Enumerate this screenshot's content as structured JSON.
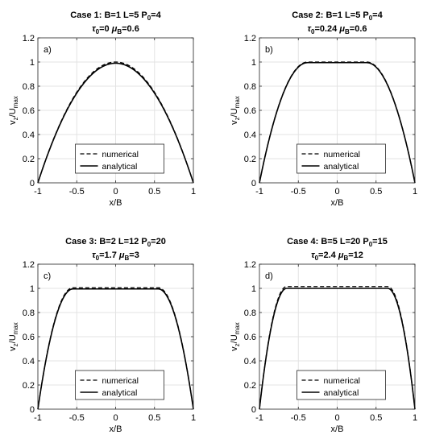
{
  "chart_data": [
    {
      "type": "line",
      "title": [
        "Case 1: B=1  L=5  P0=4",
        "τ0=0  μB=0.6"
      ],
      "title_line1": {
        "case": "Case 1:",
        "B": "B=1",
        "L": "L=5",
        "P": "P",
        "P_sub": "0",
        "P_val": "=4"
      },
      "title_line2": {
        "tau": "τ",
        "tau_sub": "0",
        "tau_val": "=0",
        "mu": "μ",
        "mu_sub": "B",
        "mu_val": "=0.6"
      },
      "panel_label": "a)",
      "xlabel": "x/B",
      "ylabel": {
        "main": "v",
        "sub1": "z",
        "sep": "/U",
        "sub2": "max"
      },
      "xlim": [
        -1,
        1
      ],
      "ylim": [
        0,
        1.2
      ],
      "xticks": [
        "-1",
        "-0.5",
        "0",
        "0.5",
        "1"
      ],
      "yticks": [
        "0",
        "0.2",
        "0.4",
        "0.6",
        "0.8",
        "1",
        "1.2"
      ],
      "grid": true,
      "legend": "lower-center",
      "xi0": 0,
      "series": [
        {
          "name": "numerical",
          "style": "dashed",
          "peak": 1.0
        },
        {
          "name": "analytical",
          "style": "solid",
          "peak": 0.99
        }
      ]
    },
    {
      "type": "line",
      "title": [
        "Case 2: B=1  L=5  P0=4",
        "τ0=0.24  μB=0.6"
      ],
      "title_line1": {
        "case": "Case 2:",
        "B": "B=1",
        "L": "L=5",
        "P": "P",
        "P_sub": "0",
        "P_val": "=4"
      },
      "title_line2": {
        "tau": "τ",
        "tau_sub": "0",
        "tau_val": "=0.24",
        "mu": "μ",
        "mu_sub": "B",
        "mu_val": "=0.6"
      },
      "panel_label": "b)",
      "xlabel": "x/B",
      "ylabel": {
        "main": "v",
        "sub1": "z",
        "sep": "/U",
        "sub2": "max"
      },
      "xlim": [
        -1,
        1
      ],
      "ylim": [
        0,
        1.2
      ],
      "xticks": [
        "-1",
        "-0.5",
        "0",
        "0.5",
        "1"
      ],
      "yticks": [
        "0",
        "0.2",
        "0.4",
        "0.6",
        "0.8",
        "1",
        "1.2"
      ],
      "grid": true,
      "legend": "lower-center",
      "xi0": 0.38,
      "series": [
        {
          "name": "numerical",
          "style": "dashed",
          "peak": 1.0
        },
        {
          "name": "analytical",
          "style": "solid",
          "peak": 0.995
        }
      ]
    },
    {
      "type": "line",
      "title": [
        "Case 3: B=2  L=12  P0=20",
        "τ0=1.7  μB=3"
      ],
      "title_line1": {
        "case": "Case 3:",
        "B": "B=2",
        "L": "L=12",
        "P": "P",
        "P_sub": "0",
        "P_val": "=20"
      },
      "title_line2": {
        "tau": "τ",
        "tau_sub": "0",
        "tau_val": "=1.7",
        "mu": "μ",
        "mu_sub": "B",
        "mu_val": "=3"
      },
      "panel_label": "c)",
      "xlabel": "x/B",
      "ylabel": {
        "main": "v",
        "sub1": "z",
        "sep": "/U",
        "sub2": "max"
      },
      "xlim": [
        -1,
        1
      ],
      "ylim": [
        0,
        1.2
      ],
      "xticks": [
        "-1",
        "-0.5",
        "0",
        "0.5",
        "1"
      ],
      "yticks": [
        "0",
        "0.2",
        "0.4",
        "0.6",
        "0.8",
        "1",
        "1.2"
      ],
      "grid": true,
      "legend": "lower-center",
      "xi0": 0.55,
      "series": [
        {
          "name": "numerical",
          "style": "dashed",
          "peak": 1.005
        },
        {
          "name": "analytical",
          "style": "solid",
          "peak": 0.995
        }
      ]
    },
    {
      "type": "line",
      "title": [
        "Case 4: B=5  L=20  P0=15",
        "τ0=2.4  μB=12"
      ],
      "title_line1": {
        "case": "Case 4:",
        "B": "B=5",
        "L": "L=20",
        "P": "P",
        "P_sub": "0",
        "P_val": "=15"
      },
      "title_line2": {
        "tau": "τ",
        "tau_sub": "0",
        "tau_val": "=2.4",
        "mu": "μ",
        "mu_sub": "B",
        "mu_val": "=12"
      },
      "panel_label": "d)",
      "xlabel": "x/B",
      "ylabel": {
        "main": "v",
        "sub1": "z",
        "sep": "/U",
        "sub2": "max"
      },
      "xlim": [
        -1,
        1
      ],
      "ylim": [
        0,
        1.2
      ],
      "xticks": [
        "-1",
        "-0.5",
        "0",
        "0.5",
        "1"
      ],
      "yticks": [
        "0",
        "0.2",
        "0.4",
        "0.6",
        "0.8",
        "1",
        "1.2"
      ],
      "grid": true,
      "legend": "lower-center",
      "xi0": 0.65,
      "series": [
        {
          "name": "numerical",
          "style": "dashed",
          "peak": 1.015
        },
        {
          "name": "analytical",
          "style": "solid",
          "peak": 1.0
        }
      ]
    }
  ]
}
